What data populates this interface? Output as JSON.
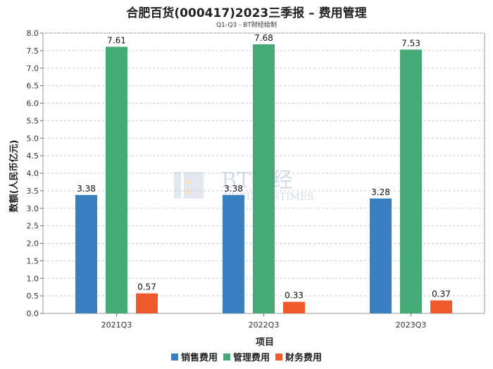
{
  "chart_data": {
    "type": "bar",
    "title": "合肥百货(000417)2023三季报 – 费用管理",
    "subtitle": "Q1-Q3 - BT财经绘制",
    "xlabel": "项目",
    "ylabel": "数额(人民币亿元)",
    "categories": [
      "2021Q3",
      "2022Q3",
      "2023Q3"
    ],
    "ylim": [
      0,
      8.0
    ],
    "yticks": [
      "0.0",
      "0.5",
      "1.0",
      "1.5",
      "2.0",
      "2.5",
      "3.0",
      "3.5",
      "4.0",
      "4.5",
      "5.0",
      "5.5",
      "6.0",
      "6.5",
      "7.0",
      "7.5",
      "8.0"
    ],
    "grid": true,
    "legend_position": "bottom",
    "series": [
      {
        "name": "销售费用",
        "color": "#3a7fbf",
        "values": [
          3.38,
          3.38,
          3.28
        ],
        "labels": [
          "3.38",
          "3.38",
          "3.28"
        ]
      },
      {
        "name": "管理费用",
        "color": "#46aa76",
        "values": [
          7.61,
          7.68,
          7.53
        ],
        "labels": [
          "7.61",
          "7.68",
          "7.53"
        ]
      },
      {
        "name": "财务费用",
        "color": "#ee5a2c",
        "values": [
          0.57,
          0.33,
          0.37
        ],
        "labels": [
          "0.57",
          "0.33",
          "0.37"
        ]
      }
    ]
  },
  "watermark": {
    "brand": "BT财经",
    "sub": "BUSINESSTIMES"
  }
}
